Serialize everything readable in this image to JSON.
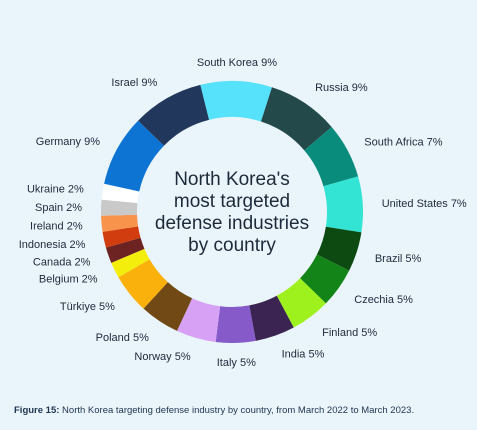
{
  "chart_data": {
    "type": "pie",
    "variant": "donut",
    "title": "North Korea's most targeted defense industries by country",
    "title_lines": [
      "North Korea's",
      "most targeted",
      "defense industries",
      "by country"
    ],
    "slices": [
      {
        "label": "South Korea 9%",
        "name": "South Korea",
        "value": 9,
        "color": "#55e2fa"
      },
      {
        "label": "Russia 9%",
        "name": "Russia",
        "value": 9,
        "color": "#23494a"
      },
      {
        "label": "South Africa 7%",
        "name": "South Africa",
        "value": 7,
        "color": "#098c7c"
      },
      {
        "label": "United States 7%",
        "name": "United States",
        "value": 7,
        "color": "#33e3d3"
      },
      {
        "label": "Brazil 5%",
        "name": "Brazil",
        "value": 5,
        "color": "#0c4a11"
      },
      {
        "label": "Czechia 5%",
        "name": "Czechia",
        "value": 5,
        "color": "#138417"
      },
      {
        "label": "Finland 5%",
        "name": "Finland",
        "value": 5,
        "color": "#9ff11d"
      },
      {
        "label": "India 5%",
        "name": "India",
        "value": 5,
        "color": "#3b2451"
      },
      {
        "label": "Italy 5%",
        "name": "Italy",
        "value": 5,
        "color": "#865ac9"
      },
      {
        "label": "Norway 5%",
        "name": "Norway",
        "value": 5,
        "color": "#d7a1f6"
      },
      {
        "label": "Poland 5%",
        "name": "Poland",
        "value": 5,
        "color": "#704914"
      },
      {
        "label": "Türkiye 5%",
        "name": "Türkiye",
        "value": 5,
        "color": "#fbb10b"
      },
      {
        "label": "Belgium 2%",
        "name": "Belgium",
        "value": 2,
        "color": "#f4ee0d"
      },
      {
        "label": "Canada 2%",
        "name": "Canada",
        "value": 2,
        "color": "#6e2323"
      },
      {
        "label": "Indonesia 2%",
        "name": "Indonesia",
        "value": 2,
        "color": "#d13d0f"
      },
      {
        "label": "Ireland 2%",
        "name": "Ireland",
        "value": 2,
        "color": "#f8934b"
      },
      {
        "label": "Spain 2%",
        "name": "Spain",
        "value": 2,
        "color": "#c9c9c9"
      },
      {
        "label": "Ukraine 2%",
        "name": "Ukraine",
        "value": 2,
        "color": "#ffffff"
      },
      {
        "label": "Germany 9%",
        "name": "Germany",
        "value": 9,
        "color": "#0d74d3"
      },
      {
        "label": "Israel 9%",
        "name": "Israel",
        "value": 9,
        "color": "#22375c"
      }
    ]
  },
  "caption": {
    "prefix": "Figure 15:",
    "text": " North Korea targeting defense industry by country, from March 2022 to March 2023."
  }
}
